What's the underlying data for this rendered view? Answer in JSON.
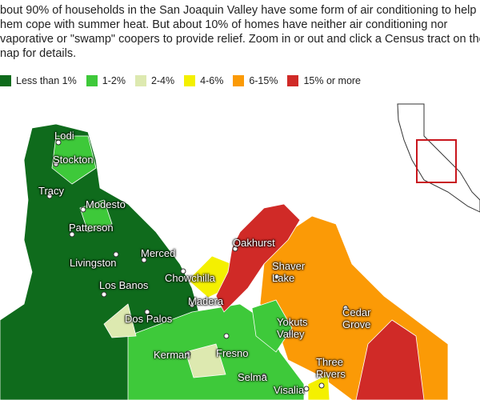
{
  "intro": {
    "lines": [
      "bout 90% of households in the San Joaquin Valley have some form of air conditioning to help",
      "hem cope with summer heat. But about 10% of homes have neither air conditioning nor",
      "vaporative or \"swamp\" coopers to provide relief. Zoom in or out and click a Census tract on the",
      "nap for details."
    ]
  },
  "legend": {
    "items": [
      {
        "label": "Less than 1%",
        "color": "#0f6b1c"
      },
      {
        "label": "1-2%",
        "color": "#3ec93a"
      },
      {
        "label": "2-4%",
        "color": "#dde9b0"
      },
      {
        "label": "4-6%",
        "color": "#f4f000"
      },
      {
        "label": "6-15%",
        "color": "#fb9a06"
      },
      {
        "label": "15% or more",
        "color": "#d02a27"
      }
    ]
  },
  "places": [
    {
      "name": "Lodi"
    },
    {
      "name": "Stockton"
    },
    {
      "name": "Tracy"
    },
    {
      "name": "Modesto"
    },
    {
      "name": "Patterson"
    },
    {
      "name": "Merced"
    },
    {
      "name": "Livingston"
    },
    {
      "name": "Chowchilla"
    },
    {
      "name": "Los Banos"
    },
    {
      "name": "Oakhurst"
    },
    {
      "name": "Shaver Lake"
    },
    {
      "name": "Madera"
    },
    {
      "name": "Dos Palos"
    },
    {
      "name": "Yokuts Valley"
    },
    {
      "name": "Cedar Grove"
    },
    {
      "name": "Kerman"
    },
    {
      "name": "Fresno"
    },
    {
      "name": "Three Rivers"
    },
    {
      "name": "Selma"
    },
    {
      "name": "Visalia"
    }
  ]
}
